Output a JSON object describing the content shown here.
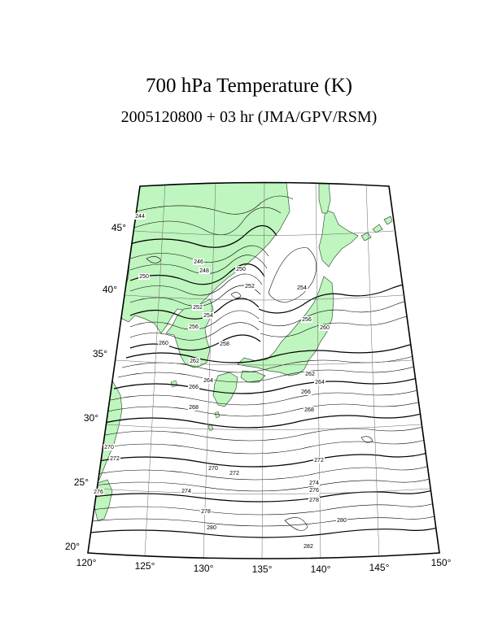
{
  "title": "700 hPa Temperature (K)",
  "subtitle": "2005120800 + 03 hr (JMA/GPV/RSM)",
  "colors": {
    "land": "#bff5be",
    "coast": "#3a5a3a",
    "contour": "#000000",
    "grid": "#666666"
  },
  "map": {
    "type": "contour map",
    "lon_range": [
      120,
      150
    ],
    "lat_range": [
      20,
      47
    ],
    "lon_labels": [
      "120°",
      "125°",
      "130°",
      "135°",
      "140°",
      "145°",
      "150°"
    ],
    "lat_labels": [
      "20°",
      "25°",
      "30°",
      "35°",
      "40°",
      "45°"
    ],
    "contour_labels": [
      "244",
      "246",
      "248",
      "250",
      "250",
      "252",
      "252",
      "254",
      "254",
      "256",
      "256",
      "258",
      "260",
      "260",
      "262",
      "262",
      "264",
      "264",
      "266",
      "266",
      "268",
      "268",
      "270",
      "270",
      "272",
      "272",
      "272",
      "274",
      "274",
      "276",
      "276",
      "278",
      "278",
      "280",
      "280",
      "282"
    ]
  }
}
